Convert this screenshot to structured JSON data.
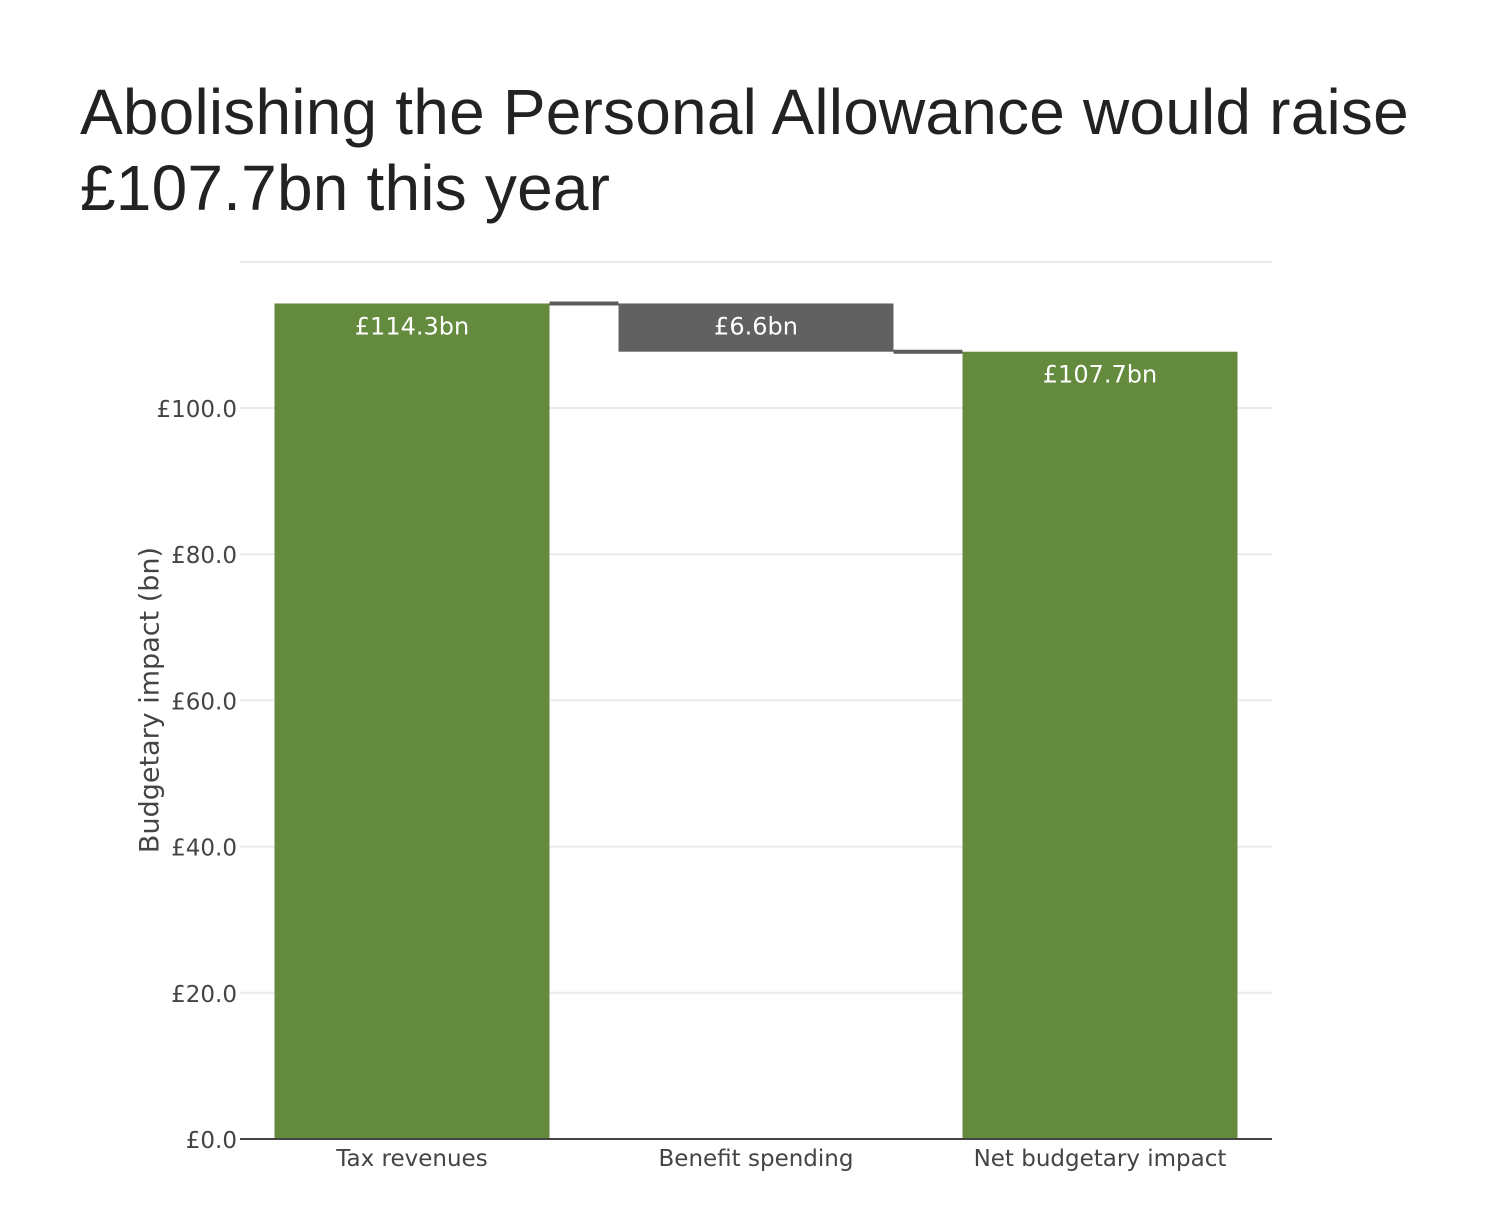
{
  "chart_data": {
    "type": "bar",
    "subtype": "waterfall",
    "title": "Abolishing the Personal Allowance would raise £107.7bn this year",
    "xlabel": "",
    "ylabel": "Budgetary impact (bn)",
    "ylim": [
      0,
      115.5
    ],
    "yticks": [
      0,
      20,
      40,
      60,
      80,
      100
    ],
    "ytick_labels": [
      "£0.0",
      "£20.0",
      "£40.0",
      "£60.0",
      "£80.0",
      "£100.0"
    ],
    "grid": true,
    "categories": [
      "Tax revenues",
      "Benefit spending",
      "Net budgetary impact"
    ],
    "bars": [
      {
        "category": "Tax revenues",
        "base": 0,
        "value": 114.3,
        "label": "£114.3bn",
        "color": "#648a3e"
      },
      {
        "category": "Benefit spending",
        "base": 107.7,
        "value": 6.6,
        "label": "£6.6bn",
        "color": "#616161"
      },
      {
        "category": "Net budgetary impact",
        "base": 0,
        "value": 107.7,
        "label": "£107.7bn",
        "color": "#648a3e"
      }
    ]
  }
}
